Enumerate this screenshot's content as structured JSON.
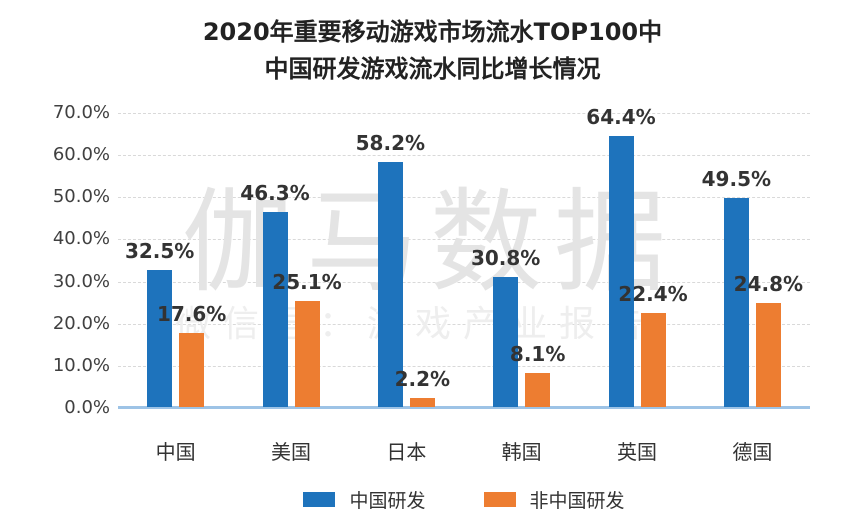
{
  "title": {
    "line1": "2020年重要移动游戏市场流水TOP100中",
    "line2": "中国研发游戏流水同比增长情况"
  },
  "watermark": {
    "line1": "伽马数据",
    "line2": "微信号：游戏产业报告"
  },
  "chart_data": {
    "type": "bar",
    "title": "2020年重要移动游戏市场流水TOP100中中国研发游戏流水同比增长情况",
    "categories": [
      "中国",
      "美国",
      "日本",
      "韩国",
      "英国",
      "德国"
    ],
    "series": [
      {
        "name": "中国研发",
        "color": "#1e73bc",
        "values": [
          32.5,
          46.3,
          58.2,
          30.8,
          64.4,
          49.5
        ]
      },
      {
        "name": "非中国研发",
        "color": "#ed7d31",
        "values": [
          17.6,
          25.1,
          2.2,
          8.1,
          22.4,
          24.8
        ]
      }
    ],
    "data_label_format": "{value}%",
    "ylim": [
      0,
      70
    ],
    "y_ticks": [
      0,
      10,
      20,
      30,
      40,
      50,
      60,
      70
    ],
    "y_tick_labels": [
      "0.0%",
      "10.0%",
      "20.0%",
      "30.0%",
      "40.0%",
      "50.0%",
      "60.0%",
      "70.0%"
    ],
    "grid": "horizontal-dashed",
    "gridline_color": "#d9d9d9",
    "axis_line_color": "#9dc3e6",
    "legend_position": "bottom",
    "legend_labels": [
      "中国研发",
      "非中国研发"
    ]
  }
}
